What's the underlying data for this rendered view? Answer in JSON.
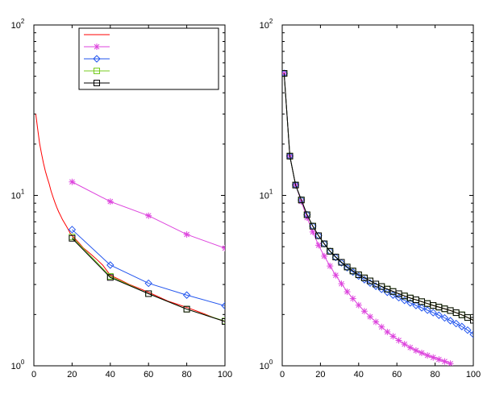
{
  "chart_data": [
    {
      "type": "line",
      "title": "",
      "xlabel": "",
      "ylabel": "",
      "xlim": [
        0,
        100
      ],
      "ylim": [
        1,
        100
      ],
      "yscale": "log",
      "grid": false,
      "legend": {
        "placement": "top-right",
        "entries": [
          "",
          "",
          "",
          "",
          ""
        ]
      },
      "x_ticks": [
        "0",
        "20",
        "40",
        "60",
        "80",
        "100"
      ],
      "y_ticks": [
        {
          "base": "10",
          "exp": "0"
        },
        {
          "base": "10",
          "exp": "1"
        },
        {
          "base": "10",
          "exp": "2"
        }
      ],
      "series": [
        {
          "color": "#ff0000",
          "marker": "none",
          "x": [
            1,
            2,
            3,
            4,
            5,
            6,
            7,
            8,
            9,
            10,
            11,
            12,
            13,
            14,
            15,
            16,
            17,
            18,
            19,
            20,
            22,
            24,
            26,
            28,
            30,
            33,
            36,
            40,
            45,
            50,
            55,
            60,
            65,
            70,
            75,
            80,
            85,
            90,
            95,
            100
          ],
          "y": [
            30,
            24.5,
            20.2,
            17.6,
            15.5,
            13.9,
            12.7,
            11.7,
            10.6,
            9.8,
            9.1,
            8.5,
            8.0,
            7.6,
            7.2,
            6.9,
            6.6,
            6.3,
            6.0,
            5.8,
            5.5,
            5.2,
            4.9,
            4.7,
            4.5,
            4.2,
            3.9,
            3.4,
            3.2,
            3.0,
            2.85,
            2.7,
            2.55,
            2.4,
            2.3,
            2.2,
            2.1,
            2.0,
            1.9,
            1.82
          ]
        },
        {
          "color": "#dd44dd",
          "marker": "asterisk",
          "x": [
            20,
            40,
            60,
            80,
            100
          ],
          "y": [
            12.0,
            9.2,
            7.6,
            5.9,
            4.9
          ]
        },
        {
          "color": "#2255ee",
          "marker": "diamond",
          "x": [
            20,
            40,
            60,
            80,
            100
          ],
          "y": [
            6.3,
            3.9,
            3.05,
            2.6,
            2.25
          ]
        },
        {
          "color": "#77cc22",
          "marker": "square",
          "x": [
            20,
            40,
            60,
            80,
            100
          ],
          "y": [
            5.7,
            3.35,
            2.65,
            2.15,
            1.83
          ]
        },
        {
          "color": "#000000",
          "marker": "square",
          "x": [
            20,
            40,
            60,
            80,
            100
          ],
          "y": [
            5.6,
            3.3,
            2.65,
            2.15,
            1.82
          ]
        }
      ]
    },
    {
      "type": "line",
      "title": "",
      "xlabel": "",
      "ylabel": "",
      "xlim": [
        0,
        100
      ],
      "ylim": [
        1,
        100
      ],
      "yscale": "log",
      "grid": false,
      "x_ticks": [
        "0",
        "20",
        "40",
        "60",
        "80",
        "100"
      ],
      "y_ticks": [
        {
          "base": "10",
          "exp": "0"
        },
        {
          "base": "10",
          "exp": "1"
        },
        {
          "base": "10",
          "exp": "2"
        }
      ],
      "series": [
        {
          "color": "#ff0000",
          "marker": "none",
          "x": [
            1,
            4,
            7,
            10,
            13,
            16,
            19,
            22,
            25,
            28,
            31,
            34,
            37,
            40,
            43,
            46,
            49,
            52,
            55,
            58,
            61,
            64,
            67,
            70,
            73,
            76,
            79,
            82,
            85,
            88,
            91,
            94,
            97,
            100
          ],
          "y": [
            52,
            17,
            11.5,
            9.4,
            7.7,
            6.6,
            5.8,
            5.2,
            4.7,
            4.35,
            4.05,
            3.8,
            3.6,
            3.42,
            3.28,
            3.15,
            3.02,
            2.92,
            2.82,
            2.73,
            2.65,
            2.57,
            2.5,
            2.44,
            2.38,
            2.32,
            2.26,
            2.21,
            2.16,
            2.11,
            2.05,
            1.99,
            1.92,
            1.85
          ]
        },
        {
          "color": "#dd44dd",
          "marker": "asterisk",
          "x": [
            1,
            4,
            7,
            10,
            13,
            16,
            19,
            22,
            25,
            28,
            31,
            34,
            37,
            40,
            43,
            46,
            49,
            52,
            55,
            58,
            61,
            64,
            67,
            70,
            73,
            76,
            79,
            82,
            85,
            88
          ],
          "y": [
            52,
            17,
            11.5,
            9.2,
            7.4,
            6.1,
            5.1,
            4.4,
            3.85,
            3.4,
            3.03,
            2.72,
            2.48,
            2.27,
            2.09,
            1.94,
            1.81,
            1.69,
            1.58,
            1.49,
            1.41,
            1.34,
            1.28,
            1.23,
            1.19,
            1.15,
            1.12,
            1.09,
            1.06,
            1.03
          ]
        },
        {
          "color": "#2255ee",
          "marker": "diamond",
          "x": [
            1,
            4,
            7,
            10,
            13,
            16,
            19,
            22,
            25,
            28,
            31,
            34,
            37,
            40,
            43,
            46,
            49,
            52,
            55,
            58,
            61,
            64,
            67,
            70,
            73,
            76,
            79,
            82,
            85,
            88,
            91,
            94,
            97,
            100
          ],
          "y": [
            52,
            17,
            11.5,
            9.4,
            7.7,
            6.6,
            5.8,
            5.2,
            4.7,
            4.33,
            4.02,
            3.76,
            3.55,
            3.36,
            3.2,
            3.06,
            2.93,
            2.81,
            2.7,
            2.6,
            2.51,
            2.42,
            2.34,
            2.26,
            2.19,
            2.12,
            2.05,
            1.98,
            1.91,
            1.84,
            1.77,
            1.7,
            1.62,
            1.53
          ]
        },
        {
          "color": "#77cc22",
          "marker": "square",
          "x": [
            1,
            4,
            7,
            10,
            13,
            16,
            19,
            22,
            25,
            28,
            31,
            34,
            37,
            40,
            43,
            46,
            49,
            52,
            55,
            58,
            61,
            64,
            67,
            70,
            73,
            76,
            79,
            82,
            85,
            88,
            91,
            94,
            97,
            100
          ],
          "y": [
            52,
            17,
            11.5,
            9.4,
            7.7,
            6.6,
            5.8,
            5.2,
            4.7,
            4.35,
            4.05,
            3.8,
            3.6,
            3.42,
            3.28,
            3.15,
            3.02,
            2.92,
            2.82,
            2.73,
            2.65,
            2.57,
            2.5,
            2.44,
            2.38,
            2.32,
            2.26,
            2.21,
            2.16,
            2.11,
            2.05,
            1.99,
            1.92,
            1.85
          ]
        },
        {
          "color": "#000000",
          "marker": "square",
          "x": [
            1,
            4,
            7,
            10,
            13,
            16,
            19,
            22,
            25,
            28,
            31,
            34,
            37,
            40,
            43,
            46,
            49,
            52,
            55,
            58,
            61,
            64,
            67,
            70,
            73,
            76,
            79,
            82,
            85,
            88,
            91,
            94,
            97,
            100
          ],
          "y": [
            52,
            17,
            11.5,
            9.4,
            7.7,
            6.6,
            5.8,
            5.2,
            4.7,
            4.35,
            4.05,
            3.8,
            3.6,
            3.42,
            3.28,
            3.15,
            3.02,
            2.92,
            2.82,
            2.73,
            2.65,
            2.57,
            2.5,
            2.44,
            2.38,
            2.32,
            2.26,
            2.21,
            2.16,
            2.11,
            2.05,
            1.99,
            1.92,
            1.85
          ]
        }
      ]
    }
  ]
}
